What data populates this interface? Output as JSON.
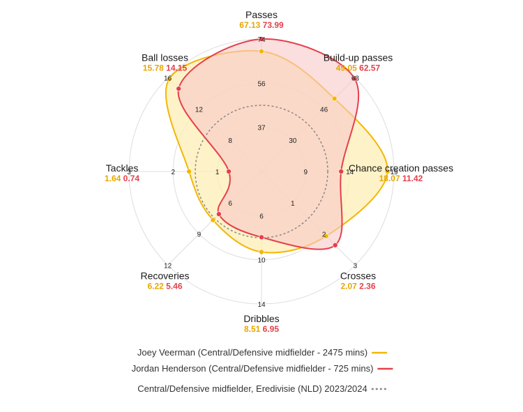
{
  "chart_data": {
    "type": "radar",
    "axes": [
      {
        "name": "Passes",
        "values": [
          67.13,
          73.99
        ],
        "ticks": [
          "37",
          "56",
          "74"
        ],
        "max": 74
      },
      {
        "name": "Build-up passes",
        "values": [
          49.05,
          62.57
        ],
        "ticks": [
          "30",
          "46",
          "63"
        ],
        "max": 63
      },
      {
        "name": "Chance creation passes",
        "values": [
          18.07,
          11.42
        ],
        "ticks": [
          "9",
          "14",
          "19"
        ],
        "max": 19
      },
      {
        "name": "Crosses",
        "values": [
          2.07,
          2.36
        ],
        "ticks": [
          "1",
          "2",
          "3"
        ],
        "max": 3
      },
      {
        "name": "Dribbles",
        "values": [
          8.51,
          6.95
        ],
        "ticks": [
          "6",
          "10",
          "14"
        ],
        "max": 14
      },
      {
        "name": "Recoveries",
        "values": [
          6.22,
          5.46
        ],
        "ticks": [
          "6",
          "9",
          "12"
        ],
        "max": 12
      },
      {
        "name": "Tackles",
        "values": [
          1.64,
          0.74
        ],
        "ticks": [
          "1",
          "2",
          "3"
        ],
        "max": 3
      },
      {
        "name": "Ball losses",
        "values": [
          15.78,
          14.15
        ],
        "ticks": [
          "8",
          "12",
          "16"
        ],
        "max": 16
      }
    ],
    "series": [
      {
        "name": "Joey Veerman (Central/Defensive midfielder - 2475 mins)",
        "color": "#f2b705",
        "fill": "#fdeeb6"
      },
      {
        "name": "Jordan Henderson (Central/Defensive midfielder - 725 mins)",
        "color": "#e5404a",
        "fill": "#f8c8c8"
      }
    ],
    "reference": {
      "name": "Central/Defensive midfielder, Eredivisie (NLD) 2023/2024",
      "color": "#888888",
      "fraction": 0.5
    },
    "value_colors": [
      "#e6a700",
      "#e5404a"
    ]
  }
}
